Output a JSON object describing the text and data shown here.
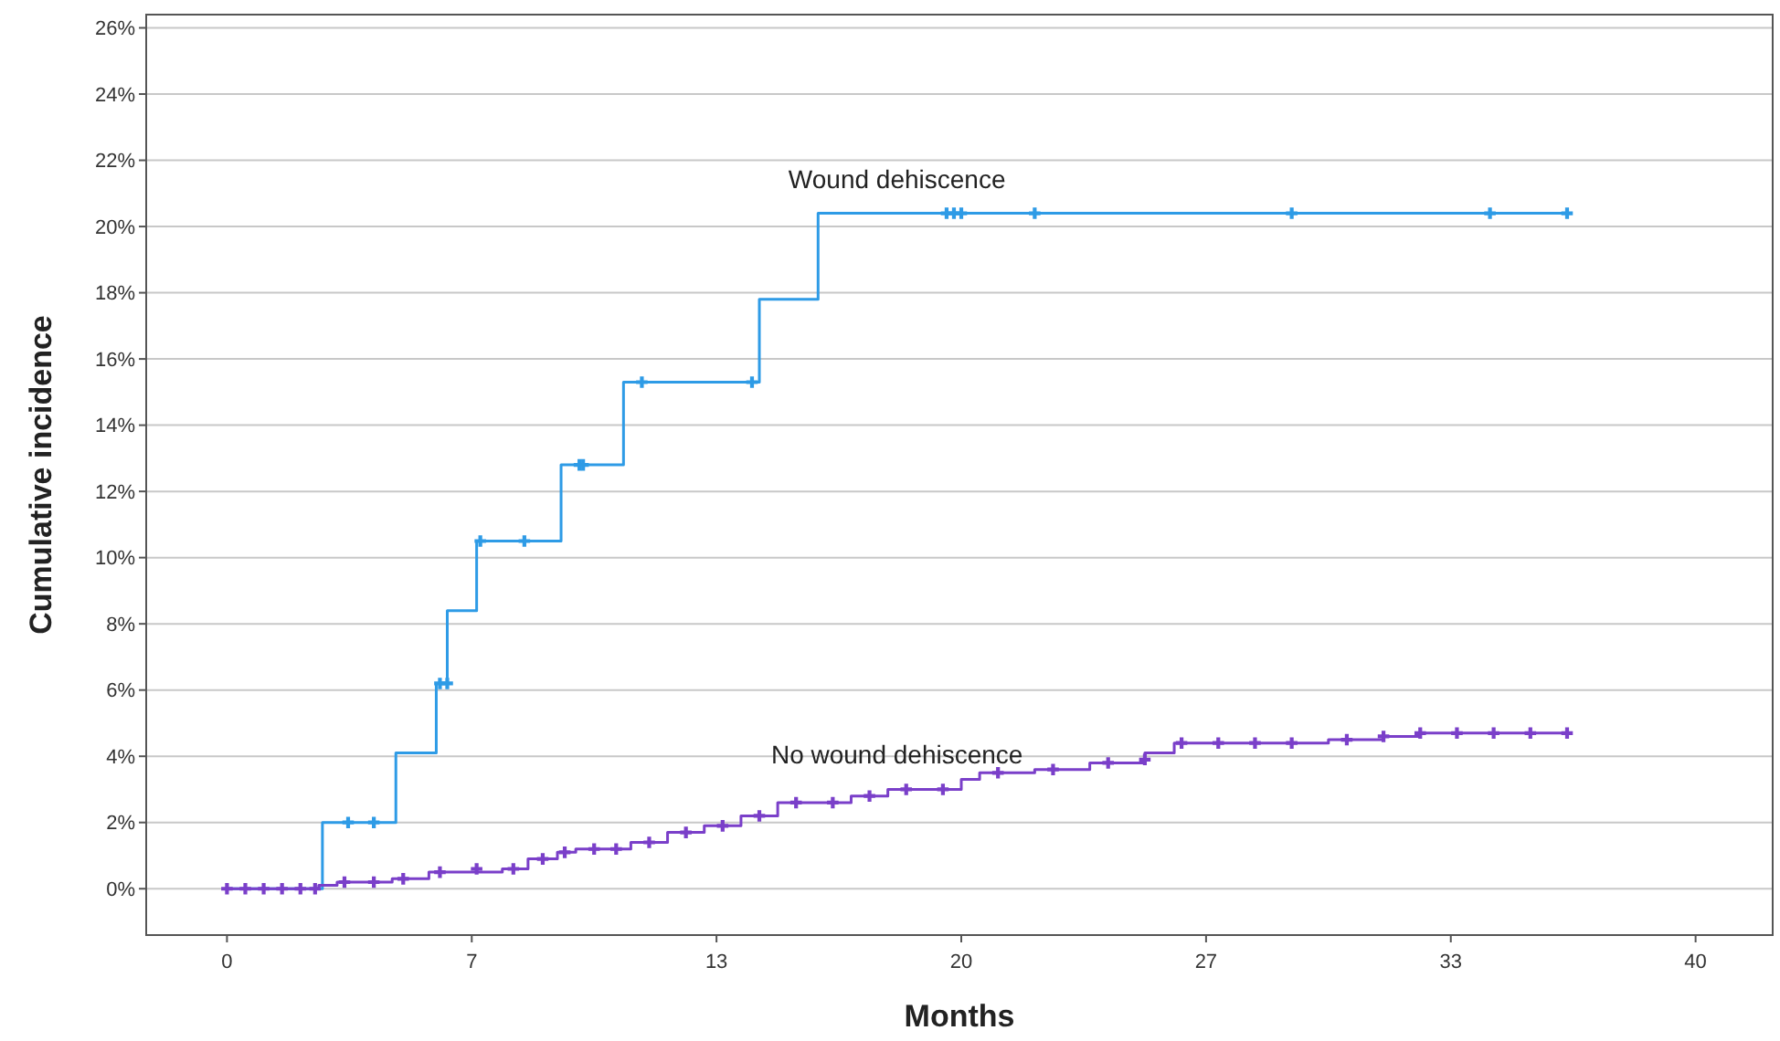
{
  "chart_data": {
    "type": "step",
    "xlabel": "Months",
    "ylabel": "Cumulative incidence",
    "xlim": [
      -2.2,
      42.1
    ],
    "ylim": [
      -1.4,
      26.4
    ],
    "xticks": [
      0,
      {
        "value": 6.667,
        "label": "7"
      },
      {
        "value": 13.333,
        "label": "13"
      },
      20,
      {
        "value": 26.667,
        "label": "27"
      },
      {
        "value": 33.333,
        "label": "33"
      },
      40
    ],
    "yticks": [
      {
        "value": 0,
        "label": "0%"
      },
      {
        "value": 2,
        "label": "2%"
      },
      {
        "value": 4,
        "label": "4%"
      },
      {
        "value": 6,
        "label": "6%"
      },
      {
        "value": 8,
        "label": "8%"
      },
      {
        "value": 10,
        "label": "10%"
      },
      {
        "value": 12,
        "label": "12%"
      },
      {
        "value": 14,
        "label": "14%"
      },
      {
        "value": 16,
        "label": "16%"
      },
      {
        "value": 18,
        "label": "18%"
      },
      {
        "value": 20,
        "label": "20%"
      },
      {
        "value": 22,
        "label": "22%"
      },
      {
        "value": 24,
        "label": "24%"
      },
      {
        "value": 26,
        "label": "26%"
      }
    ],
    "grid": "y",
    "line_style": "solid",
    "series": [
      {
        "name": "Wound dehiscence",
        "color": "#2e9be6",
        "marker": "none",
        "x": [
          0,
          2.6,
          4.6,
          5.7,
          6.0,
          6.8,
          9.1,
          10.8,
          14.5,
          16.1,
          36.5
        ],
        "values": [
          0,
          2.0,
          4.1,
          6.2,
          8.4,
          10.5,
          12.8,
          15.3,
          17.8,
          20.4,
          20.4
        ]
      },
      {
        "type": "scatter",
        "color": "#2e9be6",
        "marker": "cross",
        "x": [
          3.3,
          4.0,
          5.8,
          6.0,
          6.9,
          8.1,
          9.6,
          9.7,
          11.3,
          14.3,
          19.6,
          19.8,
          20.0,
          22.0,
          29.0,
          34.4,
          36.5
        ],
        "values": [
          2,
          2,
          6.2,
          6.2,
          10.5,
          10.5,
          12.8,
          12.8,
          15.3,
          15.3,
          20.4,
          20.4,
          20.4,
          20.4,
          20.4,
          20.4,
          20.4
        ]
      },
      {
        "name": "No wound dehiscence",
        "color": "#7a3fc9",
        "marker": "none",
        "x": [
          0,
          2.5,
          3.0,
          4.5,
          5.5,
          7.5,
          8.2,
          9.0,
          9.5,
          11.0,
          12.0,
          13.0,
          14.0,
          15.0,
          17.0,
          18.0,
          20.0,
          20.5,
          22.0,
          23.5,
          25.0,
          25.8,
          28.0,
          30.0,
          31.5,
          32.5,
          36.5
        ],
        "values": [
          0,
          0.1,
          0.2,
          0.3,
          0.5,
          0.6,
          0.9,
          1.1,
          1.2,
          1.4,
          1.7,
          1.9,
          2.2,
          2.6,
          2.8,
          3.0,
          3.3,
          3.5,
          3.6,
          3.8,
          4.1,
          4.4,
          4.4,
          4.5,
          4.6,
          4.7,
          4.7
        ]
      },
      {
        "type": "scatter",
        "color": "#7a3fc9",
        "marker": "cross",
        "x": [
          0,
          0.5,
          1.0,
          1.5,
          2.0,
          2.4,
          3.2,
          4.0,
          4.8,
          5.8,
          6.8,
          7.8,
          8.6,
          9.2,
          10.0,
          10.6,
          11.5,
          12.5,
          13.5,
          14.5,
          15.5,
          16.5,
          17.5,
          18.5,
          19.5,
          21.0,
          22.5,
          24.0,
          25.0,
          26.0,
          27.0,
          28.0,
          29.0,
          30.5,
          31.5,
          32.5,
          33.5,
          34.5,
          35.5,
          36.5
        ],
        "values": [
          0,
          0,
          0,
          0,
          0,
          0,
          0.2,
          0.2,
          0.3,
          0.5,
          0.6,
          0.6,
          0.9,
          1.1,
          1.2,
          1.2,
          1.4,
          1.7,
          1.9,
          2.2,
          2.6,
          2.6,
          2.8,
          3.0,
          3.0,
          3.5,
          3.6,
          3.8,
          3.9,
          4.4,
          4.4,
          4.4,
          4.4,
          4.5,
          4.6,
          4.7,
          4.7,
          4.7,
          4.7,
          4.7
        ]
      }
    ]
  }
}
